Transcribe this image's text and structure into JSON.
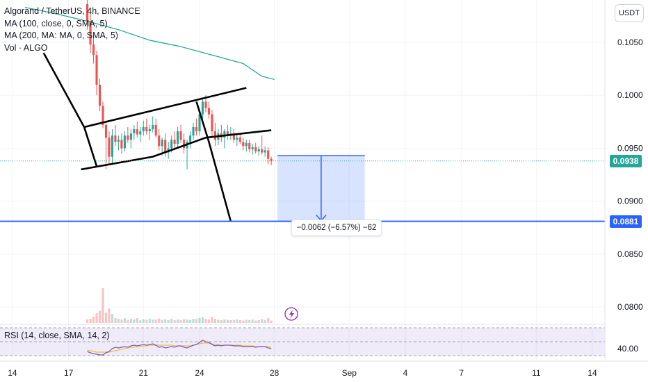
{
  "legend": {
    "title": "Algorand / TetherUS, 4h, BINANCE",
    "ma100": "MA (100, close, 0, SMA, 5)",
    "ma200": "MA (200, MA: MA, 0, SMA, 5)",
    "vol": "Vol · ALGO"
  },
  "currency_button": "USDT",
  "rsi_label": "RSI (14, close, SMA, 14, 2)",
  "current_price_tag": "0.0938",
  "target_price_tag": "0.0881",
  "measure_label": "−0.0062 (−6.57%) −62",
  "colors": {
    "up": "#26a69a",
    "down": "#ef5350",
    "ma": "#26a69a",
    "target_line": "#2962ff",
    "rsi": "#7e57c2",
    "rsi_ma": "#e6c63a",
    "current_tag": "#26a69a",
    "target_tag": "#2962ff"
  },
  "icons": {
    "lightning": "lightning-icon"
  },
  "chart_data": {
    "type": "candlestick",
    "title": "Algorand / TetherUS, 4h, BINANCE",
    "y_axis": {
      "ticks": [
        "0.1050",
        "0.1000",
        "0.0950",
        "0.0900",
        "0.0850",
        "0.0800"
      ],
      "tick_values": [
        0.105,
        0.1,
        0.095,
        0.09,
        0.085,
        0.08
      ],
      "range": [
        0.0785,
        0.109
      ]
    },
    "x_axis": {
      "ticks": [
        "14",
        "17",
        "21",
        "24",
        "28",
        "Sep",
        "4",
        "7",
        "11",
        "14"
      ],
      "tick_index": [
        -24,
        -6,
        18,
        36,
        60,
        84,
        102,
        120,
        144,
        162
      ],
      "range": [
        -28,
        166
      ]
    },
    "candles": [
      [
        0.1086,
        0.11,
        0.1062,
        0.107
      ],
      [
        0.107,
        0.1078,
        0.104,
        0.1048
      ],
      [
        0.1048,
        0.1055,
        0.103,
        0.1038
      ],
      [
        0.1038,
        0.1042,
        0.1,
        0.101
      ],
      [
        0.101,
        0.1016,
        0.0985,
        0.099
      ],
      [
        0.099,
        0.0994,
        0.0969,
        0.0972
      ],
      [
        0.0972,
        0.0975,
        0.093,
        0.096
      ],
      [
        0.096,
        0.0966,
        0.0934,
        0.0942
      ],
      [
        0.0942,
        0.0968,
        0.0935,
        0.0962
      ],
      [
        0.0962,
        0.0972,
        0.0952,
        0.0956
      ],
      [
        0.0956,
        0.0962,
        0.0948,
        0.0958
      ],
      [
        0.0958,
        0.0964,
        0.0945,
        0.095
      ],
      [
        0.095,
        0.0966,
        0.0947,
        0.0962
      ],
      [
        0.0962,
        0.097,
        0.0955,
        0.0958
      ],
      [
        0.0958,
        0.0968,
        0.095,
        0.0964
      ],
      [
        0.0964,
        0.0972,
        0.0958,
        0.0968
      ],
      [
        0.0968,
        0.0975,
        0.096,
        0.0963
      ],
      [
        0.0963,
        0.097,
        0.0956,
        0.0966
      ],
      [
        0.0966,
        0.0976,
        0.0962,
        0.097
      ],
      [
        0.097,
        0.0978,
        0.0963,
        0.0966
      ],
      [
        0.0966,
        0.0972,
        0.0958,
        0.0968
      ],
      [
        0.0968,
        0.098,
        0.0965,
        0.0972
      ],
      [
        0.0972,
        0.0978,
        0.096,
        0.0962
      ],
      [
        0.0962,
        0.0968,
        0.0948,
        0.0952
      ],
      [
        0.0952,
        0.096,
        0.0943,
        0.0958
      ],
      [
        0.0958,
        0.0964,
        0.0942,
        0.0946
      ],
      [
        0.0946,
        0.0956,
        0.094,
        0.095
      ],
      [
        0.095,
        0.0962,
        0.0946,
        0.0958
      ],
      [
        0.0958,
        0.0966,
        0.095,
        0.0954
      ],
      [
        0.0954,
        0.097,
        0.095,
        0.0966
      ],
      [
        0.0966,
        0.0972,
        0.0955,
        0.0958
      ],
      [
        0.0958,
        0.0964,
        0.0945,
        0.095
      ],
      [
        0.095,
        0.0958,
        0.093,
        0.0956
      ],
      [
        0.0956,
        0.0966,
        0.095,
        0.0962
      ],
      [
        0.0962,
        0.0974,
        0.0958,
        0.097
      ],
      [
        0.097,
        0.0978,
        0.0962,
        0.0966
      ],
      [
        0.0966,
        0.0986,
        0.0962,
        0.0982
      ],
      [
        0.0982,
        0.0998,
        0.0976,
        0.0994
      ],
      [
        0.0994,
        0.1,
        0.0984,
        0.0988
      ],
      [
        0.0988,
        0.0994,
        0.0978,
        0.0982
      ],
      [
        0.0982,
        0.0986,
        0.096,
        0.0966
      ],
      [
        0.0966,
        0.0974,
        0.0952,
        0.0958
      ],
      [
        0.0958,
        0.0968,
        0.0953,
        0.0964
      ],
      [
        0.0964,
        0.0972,
        0.0956,
        0.096
      ],
      [
        0.096,
        0.0968,
        0.095,
        0.0966
      ],
      [
        0.0966,
        0.0972,
        0.0958,
        0.0962
      ],
      [
        0.0962,
        0.097,
        0.0958,
        0.0964
      ],
      [
        0.0964,
        0.0968,
        0.0955,
        0.0958
      ],
      [
        0.0958,
        0.0963,
        0.0952,
        0.096
      ],
      [
        0.096,
        0.0964,
        0.0954,
        0.0956
      ],
      [
        0.0956,
        0.096,
        0.0948,
        0.0952
      ],
      [
        0.0952,
        0.0958,
        0.0947,
        0.0955
      ],
      [
        0.0955,
        0.0958,
        0.0946,
        0.0949
      ],
      [
        0.0949,
        0.0954,
        0.0944,
        0.0951
      ],
      [
        0.0951,
        0.0955,
        0.0945,
        0.0947
      ],
      [
        0.0947,
        0.0952,
        0.0943,
        0.0949
      ],
      [
        0.0949,
        0.0962,
        0.0944,
        0.0946
      ],
      [
        0.0946,
        0.0952,
        0.0942,
        0.0948
      ],
      [
        0.0948,
        0.0951,
        0.0935,
        0.094
      ],
      [
        0.094,
        0.0942,
        0.0934,
        0.0938
      ]
    ],
    "volume": [
      0.1,
      0.12,
      0.18,
      0.28,
      0.35,
      1.0,
      0.3,
      0.42,
      0.26,
      0.14,
      0.12,
      0.1,
      0.14,
      0.09,
      0.12,
      0.1,
      0.14,
      0.08,
      0.11,
      0.09,
      0.12,
      0.1,
      0.1,
      0.13,
      0.09,
      0.11,
      0.08,
      0.12,
      0.08,
      0.1,
      0.09,
      0.11,
      0.1,
      0.09,
      0.12,
      0.11,
      0.14,
      0.17,
      0.12,
      0.1,
      0.18,
      0.12,
      0.09,
      0.08,
      0.1,
      0.09,
      0.08,
      0.09,
      0.1,
      0.08,
      0.07,
      0.09,
      0.08,
      0.1,
      0.07,
      0.08,
      0.11,
      0.09,
      0.14,
      0.07
    ],
    "ma_line": [
      [
        -20,
        0.1083
      ],
      [
        -10,
        0.1077
      ],
      [
        0,
        0.107
      ],
      [
        10,
        0.1062
      ],
      [
        20,
        0.1052
      ],
      [
        30,
        0.1046
      ],
      [
        40,
        0.1038
      ],
      [
        50,
        0.103
      ],
      [
        56,
        0.1018
      ],
      [
        60,
        0.1015
      ]
    ],
    "rsi": {
      "label": "RSI (14, close, SMA, 14, 2)",
      "ticks": [
        "40.00"
      ],
      "range": [
        30,
        70
      ],
      "band": [
        30,
        70
      ],
      "values": [
        36,
        34,
        33,
        32,
        31,
        31,
        34,
        36,
        40,
        42,
        41,
        42,
        43,
        42,
        44,
        45,
        44,
        45,
        46,
        45,
        46,
        47,
        45,
        42,
        43,
        41,
        42,
        43,
        42,
        44,
        44,
        42,
        41,
        43,
        45,
        46,
        49,
        52,
        50,
        49,
        46,
        44,
        45,
        44,
        45,
        45,
        45,
        44,
        44,
        44,
        43,
        43,
        43,
        43,
        42,
        43,
        43,
        43,
        41,
        40
      ],
      "ma": [
        38,
        37,
        36,
        35,
        35,
        35,
        35,
        35,
        36,
        37,
        38,
        39,
        40,
        41,
        42,
        42,
        43,
        43,
        44,
        44,
        45,
        45,
        45,
        45,
        45,
        45,
        45,
        45,
        44,
        44,
        44,
        44,
        44,
        44,
        45,
        46,
        47,
        48,
        48,
        48,
        47,
        46,
        46,
        45,
        45,
        45,
        45,
        45,
        45,
        45,
        44,
        44,
        44,
        44,
        43,
        43,
        43,
        43,
        43,
        42
      ]
    },
    "annotations": {
      "channel_upper": [
        [
          -1,
          0.097
        ],
        [
          51,
          0.1007
        ]
      ],
      "channel_upper_ext": [
        [
          21,
          0.0959
        ],
        [
          59,
          0.0965
        ],
        [
          66,
          0.0966
        ]
      ],
      "channel_lower": [
        [
          -2,
          0.093
        ],
        [
          21,
          0.0942
        ],
        [
          38,
          0.096
        ],
        [
          59,
          0.0967
        ]
      ],
      "impulse_leg": [
        [
          -14,
          0.104
        ],
        [
          -1,
          0.097
        ],
        [
          3,
          0.0933
        ]
      ],
      "breakdown_leg": [
        [
          35,
          0.0994
        ],
        [
          39,
          0.0956
        ],
        [
          46,
          0.0881
        ]
      ],
      "target_line": 0.0881,
      "current_price": 0.0938,
      "measure": {
        "from": 0.0943,
        "to": 0.0881,
        "x_start": 61,
        "x_end": 89,
        "text": "−0.0062 (−6.57%) −62"
      }
    }
  }
}
